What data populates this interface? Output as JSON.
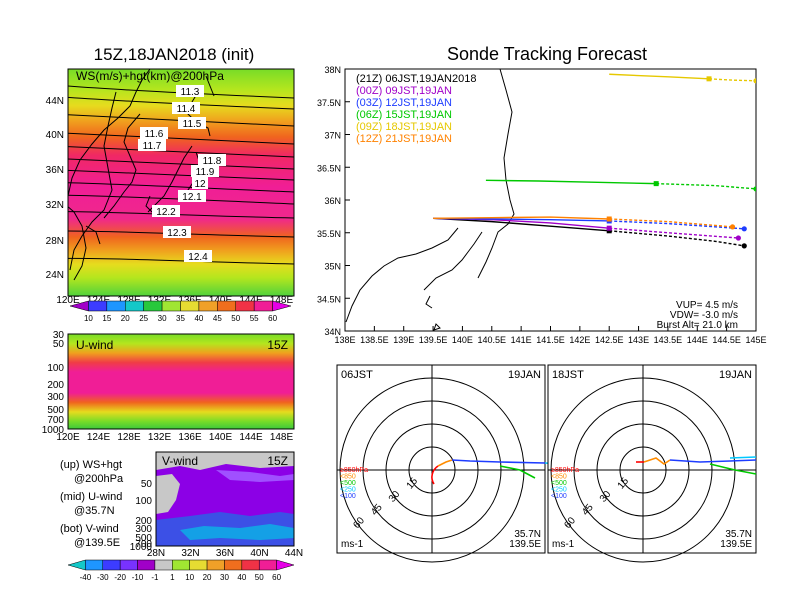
{
  "left_title": "15Z,18JAN2018 (init)",
  "right_title": "Sonde Tracking Forecast",
  "ws_map": {
    "label": "WS(m/s)+hgt(km)@200hPa",
    "lat_ticks": [
      "44N",
      "40N",
      "36N",
      "32N",
      "28N",
      "24N"
    ],
    "lon_ticks": [
      "120E",
      "124E",
      "128E",
      "132E",
      "136E",
      "140E",
      "144E",
      "148E"
    ],
    "height_labels": [
      "11.3",
      "11.4",
      "11.5",
      "11.6",
      "11.7",
      "11.8",
      "11.9",
      "12",
      "12.1",
      "12.2",
      "12.3",
      "12.4"
    ],
    "colorbar": [
      "10",
      "15",
      "20",
      "25",
      "30",
      "35",
      "40",
      "45",
      "50",
      "55",
      "60"
    ]
  },
  "uwind": {
    "label": "U-wind",
    "time": "15Z",
    "p_ticks": [
      "30",
      "50",
      "100",
      "200",
      "300",
      "500",
      "700",
      "1000"
    ],
    "lon_ticks": [
      "120E",
      "124E",
      "128E",
      "132E",
      "136E",
      "140E",
      "144E",
      "148E"
    ]
  },
  "vwind": {
    "label": "V-wind",
    "time": "15Z",
    "p_ticks": [
      "50",
      "100",
      "200",
      "300",
      "500",
      "700",
      "1000"
    ],
    "lat_ticks": [
      "28N",
      "32N",
      "36N",
      "40N",
      "44N"
    ],
    "colorbar": [
      "-40",
      "-30",
      "-20",
      "-10",
      "-1",
      "1",
      "10",
      "20",
      "30",
      "40",
      "50",
      "60"
    ]
  },
  "legend_notes": [
    {
      "head": "(up) WS+hgt",
      "sub": "@200hPa"
    },
    {
      "head": "(mid) U-wind",
      "sub": "@35.7N"
    },
    {
      "head": "(bot) V-wind",
      "sub": "@139.5E"
    }
  ],
  "track": {
    "lat_ticks": [
      "38N",
      "37.5N",
      "37N",
      "36.5N",
      "36N",
      "35.5N",
      "35N",
      "34.5N",
      "34N"
    ],
    "lon_ticks": [
      "138E",
      "138.5E",
      "139E",
      "139.5E",
      "140E",
      "140.5E",
      "141E",
      "141.5E",
      "142E",
      "142.5E",
      "143E",
      "143.5E",
      "144E",
      "144.5E",
      "145E"
    ],
    "launches": [
      {
        "label": "(21Z)  06JST,19JAN2018",
        "color": "#000000"
      },
      {
        "label": "(00Z)  09JST,19JAN",
        "color": "#a000c8"
      },
      {
        "label": "(03Z)  12JST,19JAN",
        "color": "#1e3cff"
      },
      {
        "label": "(06Z)  15JST,19JAN",
        "color": "#00c800"
      },
      {
        "label": "(09Z)  18JST,19JAN",
        "color": "#e6c800"
      },
      {
        "label": "(12Z)  21JST,19JAN",
        "color": "#ff8200"
      }
    ],
    "params": [
      "VUP=  4.5 m/s",
      "VDW= -3.0 m/s",
      "Burst Alt= 21.0 km"
    ]
  },
  "hodo_left": {
    "time": "06JST",
    "date": "19JAN",
    "rings": [
      "15",
      "30",
      "45",
      "60"
    ],
    "levels": [
      {
        "label": "≥850hPa",
        "color": "#ff0000"
      },
      {
        "label": "<850",
        "color": "#ff8c00"
      },
      {
        "label": "<500",
        "color": "#00c800"
      },
      {
        "label": "<250",
        "color": "#00c8ff"
      },
      {
        "label": "<100",
        "color": "#1e3cff"
      }
    ],
    "unit": "ms-1",
    "lat": "35.7N",
    "lon": "139.5E"
  },
  "hodo_right": {
    "time": "18JST",
    "date": "19JAN",
    "rings": [
      "15",
      "30",
      "45",
      "60"
    ],
    "levels": [
      {
        "label": "≥850hPa",
        "color": "#ff0000"
      },
      {
        "label": "<850",
        "color": "#ff8c00"
      },
      {
        "label": "<500",
        "color": "#00c800"
      },
      {
        "label": "<250",
        "color": "#00c8ff"
      },
      {
        "label": "<100",
        "color": "#1e3cff"
      }
    ],
    "unit": "ms-1",
    "lat": "35.7N",
    "lon": "139.5E"
  },
  "chart_data": [
    {
      "type": "heatmap",
      "title": "15Z,18JAN2018 (init)",
      "variable": "WS(m/s)+hgt(km)@200hPa",
      "xlim": [
        120,
        150
      ],
      "ylim": [
        22,
        47
      ],
      "color_levels": [
        10,
        15,
        20,
        25,
        30,
        35,
        40,
        45,
        50,
        55,
        60
      ],
      "height_contours_km": [
        11.3,
        11.4,
        11.5,
        11.6,
        11.7,
        11.8,
        11.9,
        12,
        12.1,
        12.2,
        12.3,
        12.4
      ]
    },
    {
      "type": "heatmap",
      "variable": "U-wind",
      "time": "15Z",
      "lat": "35.7N",
      "xlim": [
        120,
        150
      ],
      "ylim_hPa": [
        1000,
        30
      ]
    },
    {
      "type": "heatmap",
      "variable": "V-wind",
      "time": "15Z",
      "lon": "139.5E",
      "xlim": [
        28,
        44
      ],
      "ylim_hPa": [
        1000,
        50
      ],
      "color_levels": [
        -40,
        -30,
        -20,
        -10,
        -1,
        1,
        10,
        20,
        30,
        40,
        50,
        60
      ]
    },
    {
      "type": "line",
      "title": "Sonde Tracking Forecast",
      "xlim": [
        138,
        145
      ],
      "ylim": [
        34,
        38
      ],
      "series": [
        {
          "name": "(21Z) 06JST,19JAN2018",
          "x": [
            139.5,
            140.5,
            141.5,
            142.5,
            143.5,
            144.3,
            144.8
          ],
          "y": [
            35.72,
            35.67,
            35.6,
            35.53,
            35.45,
            35.37,
            35.3
          ]
        },
        {
          "name": "(00Z) 09JST,19JAN",
          "x": [
            139.5,
            140.5,
            141.5,
            142.5,
            143.5,
            144.7
          ],
          "y": [
            35.72,
            35.7,
            35.65,
            35.57,
            35.5,
            35.42
          ]
        },
        {
          "name": "(03Z) 12JST,19JAN",
          "x": [
            139.5,
            140.5,
            141.5,
            142.5,
            143.5,
            144.8
          ],
          "y": [
            35.72,
            35.71,
            35.7,
            35.68,
            35.64,
            35.56
          ]
        },
        {
          "name": "(06Z) 15JST,19JAN",
          "x": [
            140.4,
            141.3,
            142.3,
            143.3,
            144.3,
            145.0
          ],
          "y": [
            36.3,
            36.29,
            36.27,
            36.25,
            36.22,
            36.17
          ]
        },
        {
          "name": "(09Z) 18JST,19JAN",
          "x": [
            142.5,
            143.5,
            144.2,
            144.6,
            145.0
          ],
          "y": [
            37.92,
            37.88,
            37.85,
            37.83,
            37.82
          ]
        },
        {
          "name": "(12Z) 21JST,19JAN",
          "x": [
            139.5,
            140.5,
            141.5,
            142.5,
            143.5,
            144.6
          ],
          "y": [
            35.72,
            35.73,
            35.74,
            35.71,
            35.67,
            35.59
          ]
        }
      ]
    }
  ]
}
